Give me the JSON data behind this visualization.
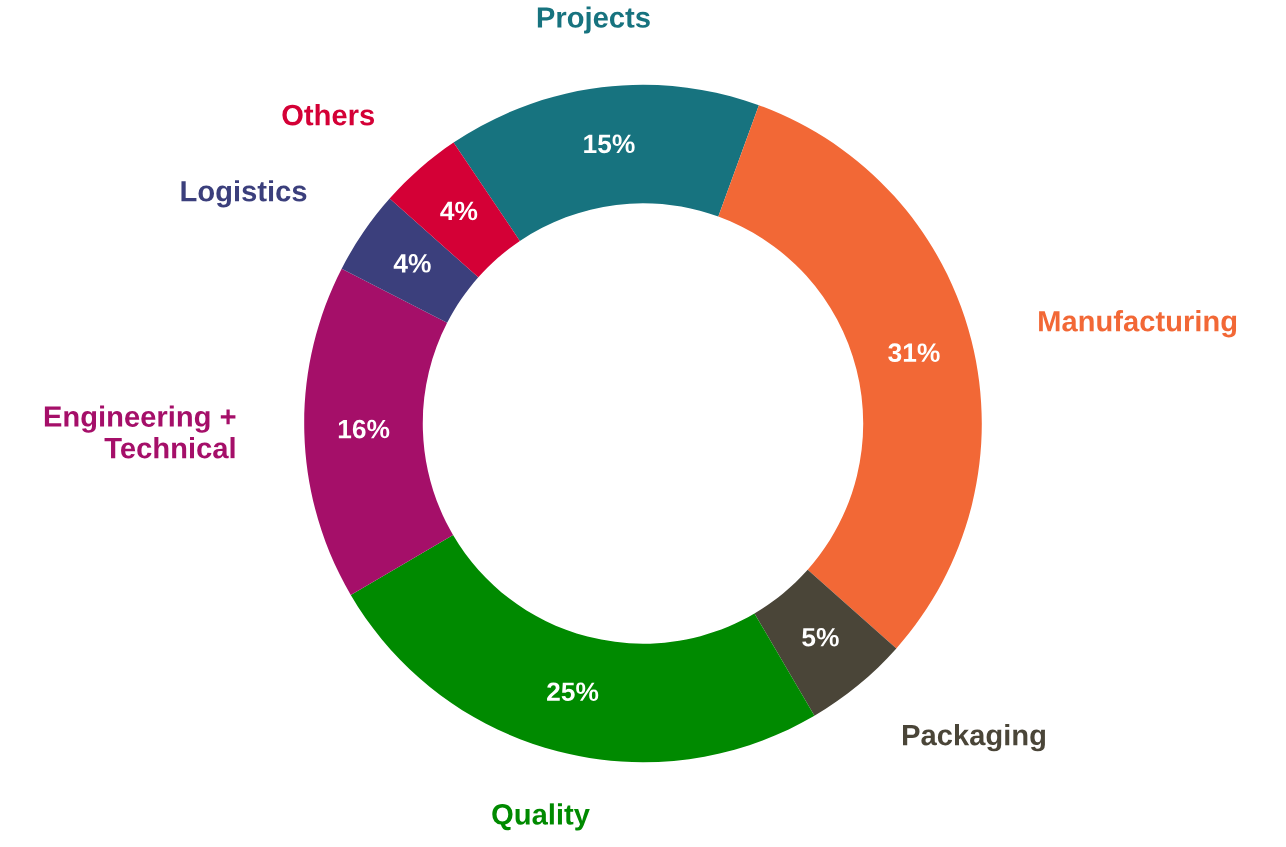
{
  "chart_data": {
    "type": "donut",
    "categories": [
      "Projects",
      "Manufacturing",
      "Packaging",
      "Quality",
      "Engineering +\nTechnical",
      "Logistics",
      "Others"
    ],
    "values": [
      15,
      31,
      5,
      25,
      16,
      4,
      4
    ],
    "colors": [
      "#17737f",
      "#f26836",
      "#4a4538",
      "#008a00",
      "#a50f69",
      "#3b3f7c",
      "#d40036"
    ],
    "value_labels": [
      "15%",
      "31%",
      "5%",
      "25%",
      "16%",
      "4%",
      "4%"
    ],
    "legend": false
  }
}
